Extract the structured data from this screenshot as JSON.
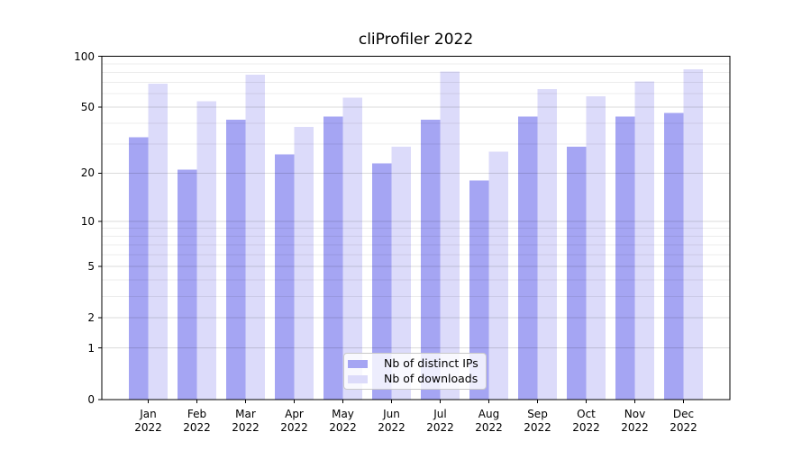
{
  "title": "cliProfiler 2022",
  "chart_data": {
    "type": "bar",
    "title": "cliProfiler 2022",
    "categories": [
      "Jan",
      "Feb",
      "Mar",
      "Apr",
      "May",
      "Jun",
      "Jul",
      "Aug",
      "Sep",
      "Oct",
      "Nov",
      "Dec"
    ],
    "xtick_year_line": "2022",
    "series": [
      {
        "name": "Nb of distinct IPs",
        "color": "#a5a5f3",
        "values": [
          33,
          21,
          42,
          26,
          44,
          23,
          42,
          18,
          44,
          29,
          44,
          46
        ]
      },
      {
        "name": "Nb of downloads",
        "color": "#dcdbfa",
        "values": [
          69,
          54,
          78,
          38,
          57,
          29,
          81,
          27,
          64,
          58,
          71,
          84
        ]
      }
    ],
    "xlabel": "",
    "ylabel": "",
    "ylim": [
      0,
      100
    ],
    "yscale": "symlog (position proportional to ln(1+v))",
    "yticks": [
      0,
      1,
      2,
      5,
      10,
      20,
      50,
      100
    ],
    "yticks_minor": [
      3,
      4,
      6,
      7,
      8,
      9,
      30,
      40,
      60,
      70,
      80,
      90
    ],
    "grid": "horizontal major+minor, drawn over bars",
    "legend": {
      "position": "lower center",
      "labels": [
        "Nb of distinct IPs",
        "Nb of downloads"
      ]
    }
  },
  "colors": {
    "background": "#ffffff",
    "bar_distinct_ips": "#a5a5f3",
    "bar_downloads": "#dcdbfa",
    "grid_major": "rgba(0,0,0,0.14)",
    "grid_minor": "rgba(0,0,0,0.075)",
    "spine": "#000000",
    "text": "#000000",
    "legend_bg": "rgba(255,255,255,0.8)",
    "legend_border": "#c9c9c9"
  }
}
